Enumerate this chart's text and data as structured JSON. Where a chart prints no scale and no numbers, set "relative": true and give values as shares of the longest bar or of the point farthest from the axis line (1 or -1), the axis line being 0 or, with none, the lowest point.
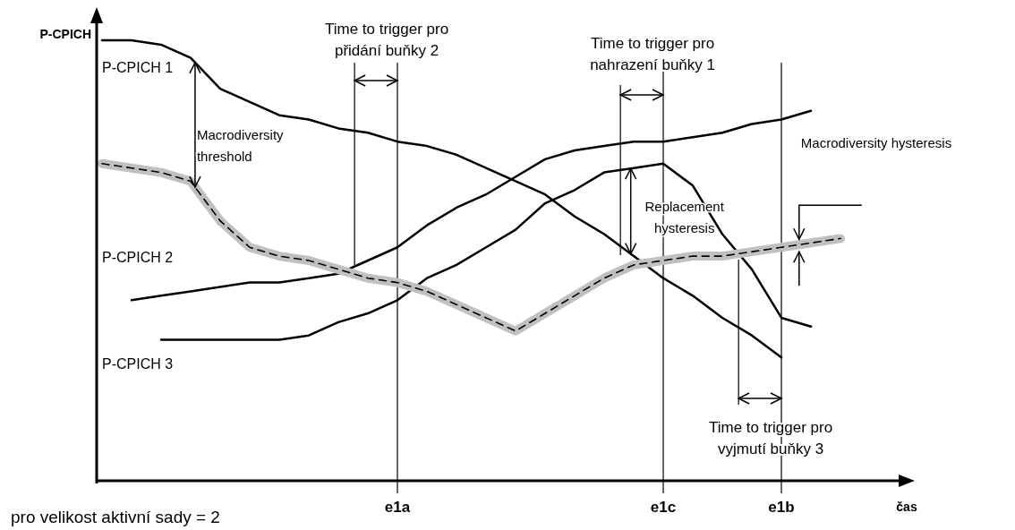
{
  "chart_data": {
    "type": "line",
    "relative": true,
    "ylabel": "P-CPICH",
    "xlabel": "čas",
    "tick_labels": "x",
    "grid": "x",
    "categories": [
      null,
      null,
      null,
      null,
      null,
      null,
      null,
      null,
      null,
      null,
      "e1a",
      null,
      null,
      null,
      null,
      null,
      null,
      null,
      null,
      "e1c",
      null,
      null,
      null,
      "e1b",
      null,
      null,
      null,
      null
    ],
    "series": [
      {
        "name": "P-CPICH 1",
        "color": "#000000",
        "values": [
          1.0,
          1.0,
          0.99,
          0.96,
          0.89,
          0.86,
          0.83,
          0.82,
          0.8,
          0.79,
          0.77,
          0.76,
          0.74,
          0.71,
          0.68,
          0.65,
          0.6,
          0.56,
          0.51,
          0.46,
          0.42,
          0.37,
          0.33,
          0.28,
          null,
          null,
          null,
          null
        ]
      },
      {
        "name": "P-CPICH 2",
        "color": "#000000",
        "values": [
          null,
          0.41,
          0.42,
          0.43,
          0.44,
          0.45,
          0.45,
          0.46,
          0.47,
          0.5,
          0.53,
          0.58,
          0.62,
          0.65,
          0.69,
          0.73,
          0.75,
          0.76,
          0.77,
          0.77,
          0.78,
          0.79,
          0.81,
          0.82,
          0.84,
          null,
          null,
          null
        ]
      },
      {
        "name": "P-CPICH 3",
        "color": "#000000",
        "values": [
          null,
          null,
          0.32,
          0.32,
          0.32,
          0.32,
          0.32,
          0.33,
          0.36,
          0.38,
          0.41,
          0.46,
          0.49,
          0.53,
          0.57,
          0.63,
          0.66,
          0.7,
          0.71,
          0.72,
          0.67,
          0.56,
          0.48,
          0.37,
          0.35,
          null,
          null,
          null
        ]
      },
      {
        "color": "#c0c0c0",
        "values": [
          0.72,
          0.71,
          0.7,
          0.68,
          0.59,
          0.53,
          0.51,
          0.5,
          0.48,
          0.46,
          0.45,
          0.43,
          0.4,
          0.37,
          0.34,
          0.38,
          0.42,
          0.46,
          0.49,
          0.5,
          0.51,
          0.51,
          0.52,
          0.53,
          0.54,
          0.55,
          null,
          null
        ]
      },
      {
        "color": "#000000",
        "line_style": "dashed",
        "values": [
          0.72,
          0.71,
          0.7,
          0.68,
          0.59,
          0.53,
          0.51,
          0.5,
          0.48,
          0.46,
          0.45,
          0.43,
          0.4,
          0.37,
          0.34,
          0.38,
          0.42,
          0.46,
          0.49,
          0.5,
          0.51,
          0.51,
          0.52,
          0.53,
          0.54,
          0.55,
          null,
          null
        ]
      }
    ],
    "annotations": [
      "Time to trigger pro\npřidání buňky 2",
      "Time to trigger pro\nnahrazení buňky 1",
      "Time to trigger pro\nvyjmutí buňky 3",
      "Macrodiversity\nthreshold",
      "Replacement\nhysteresis",
      "Macrodiversity hysteresis",
      "pro velikost aktivní sady = 2"
    ]
  }
}
